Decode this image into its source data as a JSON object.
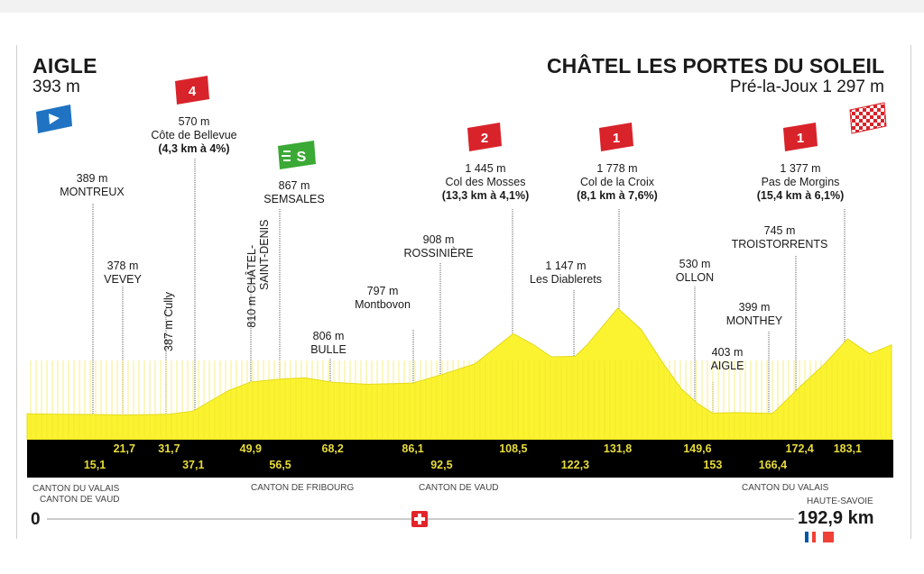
{
  "stage": {
    "start": {
      "name": "AIGLE",
      "altitude": "393 m"
    },
    "finish": {
      "name": "CHÂTEL LES PORTES DU SOLEIL",
      "altitude": "Pré-la-Joux 1 297 m"
    },
    "total_distance": "192,9 km",
    "start_distance": "0"
  },
  "climbs": [
    {
      "category": "4",
      "altitude": "570 m",
      "name": "Côte de Bellevue",
      "detail": "(4,3 km à 4%)"
    },
    {
      "category": "2",
      "altitude": "1 445 m",
      "name": "Col des Mosses",
      "detail": "(13,3 km à 4,1%)"
    },
    {
      "category": "1",
      "altitude": "1 778 m",
      "name": "Col de la Croix",
      "detail": "(8,1 km à 7,6%)"
    },
    {
      "category": "1",
      "altitude": "1 377 m",
      "name": "Pas de Morgins",
      "detail": "(15,4 km à 6,1%)"
    }
  ],
  "sprint": {
    "label": "S",
    "altitude": "867 m",
    "name": "SEMSALES"
  },
  "waypoints": [
    {
      "altitude": "389 m",
      "name": "MONTREUX"
    },
    {
      "altitude": "378 m",
      "name": "VEVEY"
    },
    {
      "vertical": "387 m Cully"
    },
    {
      "vertical_alt": "810 m",
      "vertical_name1": "CHÂTEL-",
      "vertical_name2": "SAINT-DENIS"
    },
    {
      "altitude": "806 m",
      "name": "BULLE"
    },
    {
      "altitude": "797 m",
      "name": "Montbovon"
    },
    {
      "altitude": "908 m",
      "name": "ROSSINIÈRE"
    },
    {
      "altitude": "1 147 m",
      "name": "Les Diablerets"
    },
    {
      "altitude": "530 m",
      "name": "OLLON"
    },
    {
      "altitude": "403 m",
      "name": "AIGLE"
    },
    {
      "altitude": "399 m",
      "name": "MONTHEY"
    },
    {
      "altitude": "745 m",
      "name": "TROISTORRENTS"
    }
  ],
  "km_marks": {
    "top": [
      "21,7",
      "31,7",
      "49,9",
      "68,2",
      "86,1",
      "108,5",
      "131,8",
      "149,6",
      "172,4",
      "183,1"
    ],
    "bottom": [
      "15,1",
      "37,1",
      "56,5",
      "92,5",
      "122,3",
      "153",
      "166,4"
    ]
  },
  "cantons": {
    "valais_vaud_1": "CANTON DU VALAIS",
    "valais_vaud_2": "CANTON DE VAUD",
    "fribourg": "CANTON DE FRIBOURG",
    "vaud": "CANTON DE VAUD",
    "valais": "CANTON DU VALAIS",
    "haute_savoie": "HAUTE-SAVOIE"
  },
  "colors": {
    "profile_fill": "#fbf32f",
    "profile_stroke": "#e3d81f",
    "strip": "#000000",
    "km_text": "#e7dc3a",
    "climb_badge": "#d8232a",
    "sprint_badge": "#3aa935",
    "start_flag": "#1f73c2",
    "swiss_red": "#e3242b",
    "france_blue": "#0055a4",
    "france_red": "#ef4135"
  },
  "icons": [
    "start-flag-icon",
    "finish-checkered-flag-icon",
    "climb-category-badge-icon",
    "sprint-badge-icon",
    "swiss-flag-icon",
    "french-flag-icon"
  ],
  "chart_data": {
    "type": "area",
    "title": "",
    "xlabel": "",
    "ylabel": "",
    "x_unit": "km",
    "y_unit": "m",
    "xlim": [
      0,
      192.9
    ],
    "series": [
      {
        "x": [
          0,
          8,
          15.1,
          21.7,
          31.7,
          37.1,
          45,
          49.9,
          56.5,
          62,
          68.2,
          76,
          86.1,
          92.5,
          100,
          108.5,
          113,
          117,
          122.3,
          125,
          131.8,
          137,
          142,
          146,
          149.6,
          153,
          158,
          166.4,
          172.4,
          178,
          183.1,
          188,
          192.9
        ],
        "y": [
          393,
          389,
          385,
          378,
          387,
          430,
          700,
          810,
          850,
          867,
          806,
          780,
          797,
          908,
          1050,
          1445,
          1300,
          1140,
          1147,
          1300,
          1778,
          1500,
          1050,
          720,
          530,
          403,
          410,
          399,
          745,
          1050,
          1377,
          1180,
          1297
        ]
      }
    ]
  }
}
